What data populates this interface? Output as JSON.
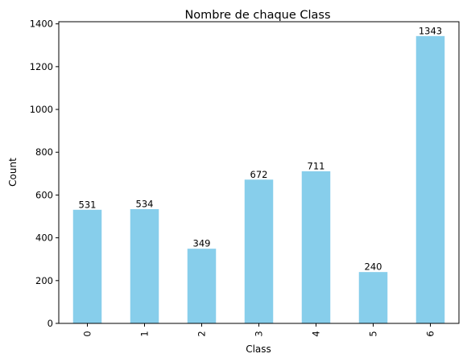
{
  "chart_data": {
    "type": "bar",
    "title": "Nombre de chaque Class",
    "xlabel": "Class",
    "ylabel": "Count",
    "categories": [
      "0",
      "1",
      "2",
      "3",
      "4",
      "5",
      "6"
    ],
    "values": [
      531,
      534,
      349,
      672,
      711,
      240,
      1343
    ],
    "data_labels": [
      "531",
      "534",
      "349",
      "672",
      "711",
      "240",
      "1343"
    ],
    "yticks": [
      0,
      200,
      400,
      600,
      800,
      1000,
      1200,
      1400
    ],
    "ylim": [
      0,
      1410
    ],
    "bar_color": "#87ceeb",
    "grid": false,
    "x_tick_rotation": "vertical"
  }
}
